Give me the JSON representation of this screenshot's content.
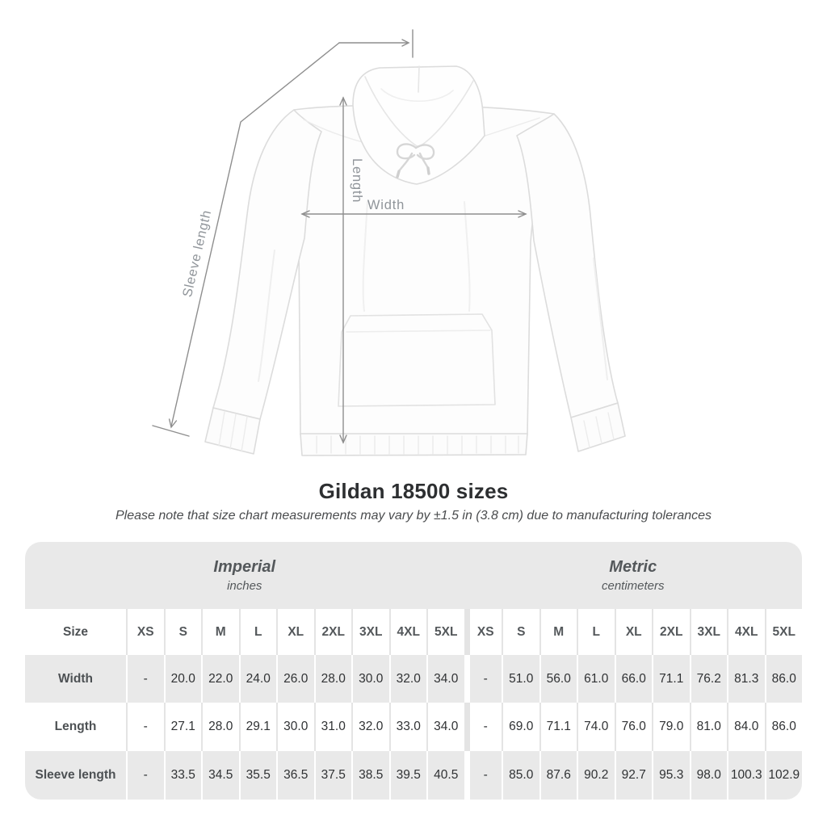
{
  "title": "Gildan 18500 sizes",
  "subtitle": "Please note that size chart measurements may vary by ±1.5 in (3.8 cm) due to manufacturing tolerances",
  "diagram": {
    "labels": {
      "sleeve_length": "Sleeve length",
      "length": "Length",
      "width": "Width"
    }
  },
  "colors": {
    "table_band_gray": "#e9e9e9",
    "row_alt_gray": "#e9e9e9",
    "separator_light": "#e4e4e4",
    "measure_line_gray": "#8e8e8e",
    "measure_label_gray": "#90959a",
    "title_dark": "#2d2f31",
    "header_text": "#54585b",
    "data_text": "#303234"
  },
  "table": {
    "size_header": "Size",
    "columns": [
      "XS",
      "S",
      "M",
      "L",
      "XL",
      "2XL",
      "3XL",
      "4XL",
      "5XL"
    ],
    "sections": [
      {
        "label": "Imperial",
        "sublabel": "inches"
      },
      {
        "label": "Metric",
        "sublabel": "centimeters"
      }
    ],
    "rows": [
      {
        "label": "Width",
        "imperial": [
          "-",
          "20.0",
          "22.0",
          "24.0",
          "26.0",
          "28.0",
          "30.0",
          "32.0",
          "34.0"
        ],
        "metric": [
          "-",
          "51.0",
          "56.0",
          "61.0",
          "66.0",
          "71.1",
          "76.2",
          "81.3",
          "86.0"
        ]
      },
      {
        "label": "Length",
        "imperial": [
          "-",
          "27.1",
          "28.0",
          "29.1",
          "30.0",
          "31.0",
          "32.0",
          "33.0",
          "34.0"
        ],
        "metric": [
          "-",
          "69.0",
          "71.1",
          "74.0",
          "76.0",
          "79.0",
          "81.0",
          "84.0",
          "86.0"
        ]
      },
      {
        "label": "Sleeve length",
        "imperial": [
          "-",
          "33.5",
          "34.5",
          "35.5",
          "36.5",
          "37.5",
          "38.5",
          "39.5",
          "40.5"
        ],
        "metric": [
          "-",
          "85.0",
          "87.6",
          "90.2",
          "92.7",
          "95.3",
          "98.0",
          "100.3",
          "102.9"
        ]
      }
    ]
  }
}
